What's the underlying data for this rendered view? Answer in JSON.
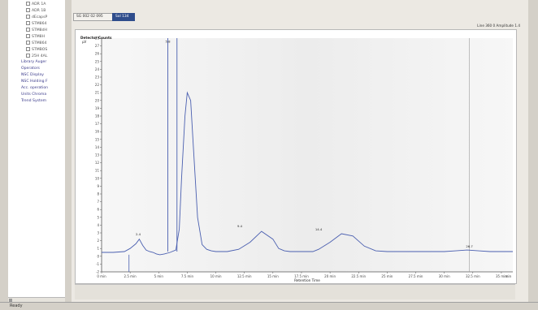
{
  "tree": {
    "items": [
      {
        "label": "ADR 1A",
        "sub": true
      },
      {
        "label": "ADR 1B",
        "sub": true
      },
      {
        "label": "dEcapsP",
        "sub": true
      },
      {
        "label": "STM864",
        "sub": true
      },
      {
        "label": "STM8dH",
        "sub": true
      },
      {
        "label": "STM8H",
        "sub": true
      },
      {
        "label": "STM864",
        "sub": true
      },
      {
        "label": "STMBOS",
        "sub": true
      },
      {
        "label": "25H 4AL",
        "sub": true
      },
      {
        "label": "Library Auger",
        "sub": false
      },
      {
        "label": "Operators",
        "sub": false
      },
      {
        "label": "NSC Display",
        "sub": false
      },
      {
        "label": "NSC Holding F",
        "sub": false
      },
      {
        "label": "Acc. operation",
        "sub": false
      },
      {
        "label": "Units Chroma",
        "sub": false
      },
      {
        "label": "Trend System",
        "sub": false
      }
    ]
  },
  "status_bar": {
    "text": "Ready"
  },
  "tabs": [
    {
      "label": "SG 002 02 095",
      "active": false
    },
    {
      "label": "Sol 134",
      "active": true
    }
  ],
  "toolbar": {
    "info": "Line  360 0  Amplitude  1.4"
  },
  "chart_data": {
    "type": "line",
    "title": "",
    "xlabel": "Retention Time",
    "ylabel": "Detector Counts",
    "x_unit": "min",
    "y_unit": "µV",
    "xlim": [
      0,
      36
    ],
    "ylim": [
      -2,
      28
    ],
    "x_ticks": [
      0,
      2.5,
      5,
      7.5,
      10,
      12.5,
      15,
      17.5,
      20,
      22.5,
      25,
      27.5,
      30,
      32.5,
      35
    ],
    "y_ticks": [
      -2,
      -1,
      0,
      1,
      2,
      3,
      4,
      5,
      6,
      7,
      8,
      9,
      10,
      11,
      12,
      13,
      14,
      15,
      16,
      17,
      18,
      19,
      20,
      21,
      22,
      23,
      24,
      25,
      26,
      27,
      28
    ],
    "grid": false,
    "legend": "none",
    "series_color": "#4a5fb0",
    "series": [
      {
        "x": [
          0,
          1,
          2,
          2.5,
          3,
          3.3,
          3.6,
          3.9,
          4.2,
          4.5,
          4.8,
          5.1,
          5.5,
          6,
          6.5,
          6.8,
          7,
          7.3,
          7.5,
          7.8,
          8,
          8.4,
          8.8,
          9.2,
          9.6,
          10,
          11,
          12,
          13,
          14,
          15,
          15.5,
          16,
          16.5,
          17,
          17.5,
          18,
          18.5,
          19,
          20,
          21,
          22,
          23,
          24,
          25,
          26,
          27,
          28,
          29,
          30,
          31,
          32,
          33,
          34,
          35,
          36
        ],
        "y": [
          0.5,
          0.5,
          0.6,
          1.0,
          1.6,
          2.2,
          1.4,
          0.8,
          0.6,
          0.5,
          0.3,
          0.2,
          0.3,
          0.5,
          0.8,
          3.5,
          10,
          18,
          21,
          20,
          15,
          5,
          1.5,
          0.9,
          0.7,
          0.6,
          0.6,
          0.9,
          1.8,
          3.2,
          2.2,
          1.0,
          0.7,
          0.6,
          0.6,
          0.6,
          0.6,
          0.6,
          0.9,
          1.8,
          2.9,
          2.6,
          1.3,
          0.7,
          0.6,
          0.6,
          0.6,
          0.6,
          0.6,
          0.6,
          0.7,
          0.8,
          0.7,
          0.6,
          0.6,
          0.6
        ]
      }
    ],
    "off_scale_peaks": [
      {
        "label": "8.8",
        "x": 5.8,
        "y": 28
      },
      {
        "label": "",
        "x": 6.6,
        "y": 28
      }
    ],
    "peak_labels": [
      {
        "label": "2.4",
        "x": 3.2,
        "y": 2.6
      },
      {
        "label": "5.8",
        "x": 5.8,
        "y": 27.3
      },
      {
        "label": "9.4",
        "x": 12.1,
        "y": 3.6
      },
      {
        "label": "14.4",
        "x": 19.0,
        "y": 3.2
      },
      {
        "label": "26.7",
        "x": 32.2,
        "y": 1.0
      }
    ],
    "cursor_x": 32.2
  }
}
